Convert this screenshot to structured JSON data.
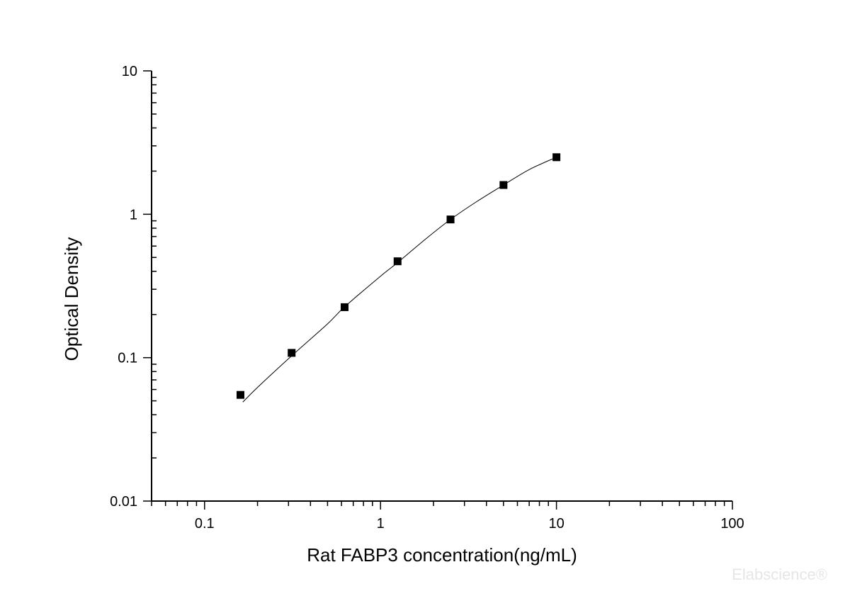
{
  "chart_data": {
    "type": "scatter",
    "title": "",
    "xlabel": "Rat FABP3 concentration(ng/mL)",
    "ylabel": "Optical Density",
    "xscale": "log",
    "yscale": "log",
    "xlim": [
      0.05,
      100
    ],
    "ylim": [
      0.01,
      10
    ],
    "x_ticks": [
      {
        "value": 0.1,
        "label": "0.1"
      },
      {
        "value": 1,
        "label": "1"
      },
      {
        "value": 10,
        "label": "10"
      },
      {
        "value": 100,
        "label": "100"
      }
    ],
    "y_ticks": [
      {
        "value": 0.01,
        "label": "0.01"
      },
      {
        "value": 0.1,
        "label": "0.1"
      },
      {
        "value": 1,
        "label": "1"
      },
      {
        "value": 10,
        "label": "10"
      }
    ],
    "grid": false,
    "legend": "none",
    "series": [
      {
        "marker": "square",
        "color": "#000000",
        "points": [
          {
            "x": 0.16,
            "y": 0.055
          },
          {
            "x": 0.3125,
            "y": 0.108
          },
          {
            "x": 0.625,
            "y": 0.225
          },
          {
            "x": 1.25,
            "y": 0.47
          },
          {
            "x": 2.5,
            "y": 0.92
          },
          {
            "x": 5,
            "y": 1.6
          },
          {
            "x": 10,
            "y": 2.5
          }
        ]
      }
    ],
    "fit_curve": {
      "color": "#000000",
      "x_range": [
        0.165,
        10
      ],
      "points": [
        {
          "x": 0.165,
          "y": 0.049
        },
        {
          "x": 0.2,
          "y": 0.062
        },
        {
          "x": 0.3125,
          "y": 0.103
        },
        {
          "x": 0.5,
          "y": 0.172
        },
        {
          "x": 0.625,
          "y": 0.226
        },
        {
          "x": 1.0,
          "y": 0.37
        },
        {
          "x": 1.25,
          "y": 0.46
        },
        {
          "x": 1.8,
          "y": 0.67
        },
        {
          "x": 2.5,
          "y": 0.92
        },
        {
          "x": 3.5,
          "y": 1.22
        },
        {
          "x": 5,
          "y": 1.6
        },
        {
          "x": 7,
          "y": 2.05
        },
        {
          "x": 10,
          "y": 2.5
        }
      ]
    }
  },
  "watermark": {
    "text": "Elabscience®",
    "color": "#e6e6e6"
  }
}
